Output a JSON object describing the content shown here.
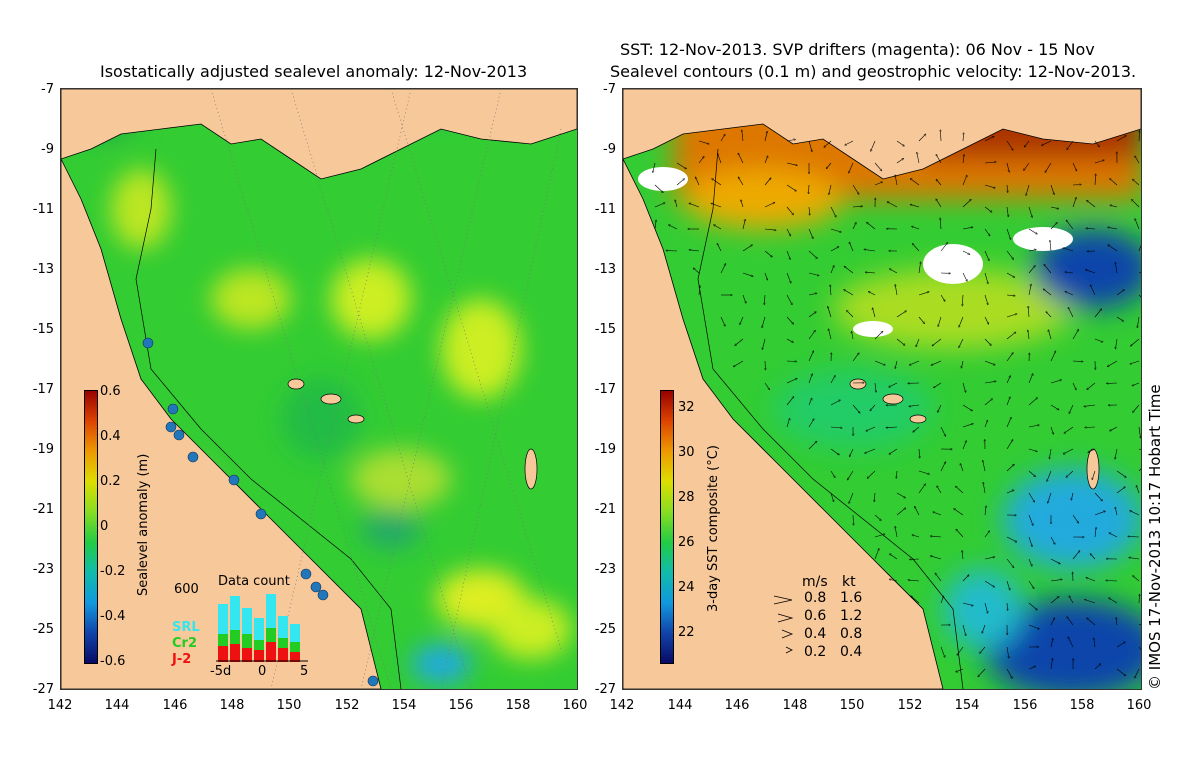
{
  "left_map": {
    "title": "Isostatically adjusted sealevel anomaly: 12-Nov-2013",
    "colorbar": {
      "label": "Sealevel anomaly (m)",
      "ticks": [
        "0.6",
        "0.4",
        "0.2",
        "0",
        "-0.2",
        "-0.4",
        "-0.6"
      ],
      "range": [
        -0.6,
        0.6
      ]
    },
    "legend": {
      "title": "Data count",
      "count_tick": "600",
      "x_ticks": [
        "-5d",
        "0",
        "5"
      ],
      "sources": [
        {
          "name": "SRL",
          "color": "#33e6f0"
        },
        {
          "name": "Cr2",
          "color": "#22cc22"
        },
        {
          "name": "J-2",
          "color": "#ee1111"
        }
      ]
    }
  },
  "right_map": {
    "title_line1": "SST: 12-Nov-2013. SVP drifters (magenta): 06 Nov - 15 Nov",
    "title_line2": "Sealevel contours (0.1 m) and geostrophic velocity: 12-Nov-2013.",
    "colorbar": {
      "label": "3-day SST composite (°C)",
      "ticks": [
        "32",
        "30",
        "28",
        "26",
        "24",
        "22"
      ],
      "range": [
        21,
        33
      ]
    },
    "velocity_legend": {
      "header_ms": "m/s",
      "header_kt": "kt",
      "rows": [
        {
          "ms": "0.8",
          "kt": "1.6"
        },
        {
          "ms": "0.6",
          "kt": "1.2"
        },
        {
          "ms": "0.4",
          "kt": "0.8"
        },
        {
          "ms": "0.2",
          "kt": "0.4"
        }
      ]
    }
  },
  "axes": {
    "lat_ticks": [
      "-7",
      "-9",
      "-11",
      "-13",
      "-15",
      "-17",
      "-19",
      "-21",
      "-23",
      "-25",
      "-27"
    ],
    "lon_ticks": [
      "142",
      "144",
      "146",
      "148",
      "150",
      "152",
      "154",
      "156",
      "158",
      "160"
    ]
  },
  "credit": "© IMOS 17-Nov-2013 10:17 Hobart Time",
  "colors": {
    "land": "#f7c89a",
    "ocean_base": "#33cc33",
    "high_anomaly": "#ccee22",
    "low_anomaly": "#22aadd",
    "warm_sst": "#dd7700",
    "cold_sst": "#1144aa"
  }
}
